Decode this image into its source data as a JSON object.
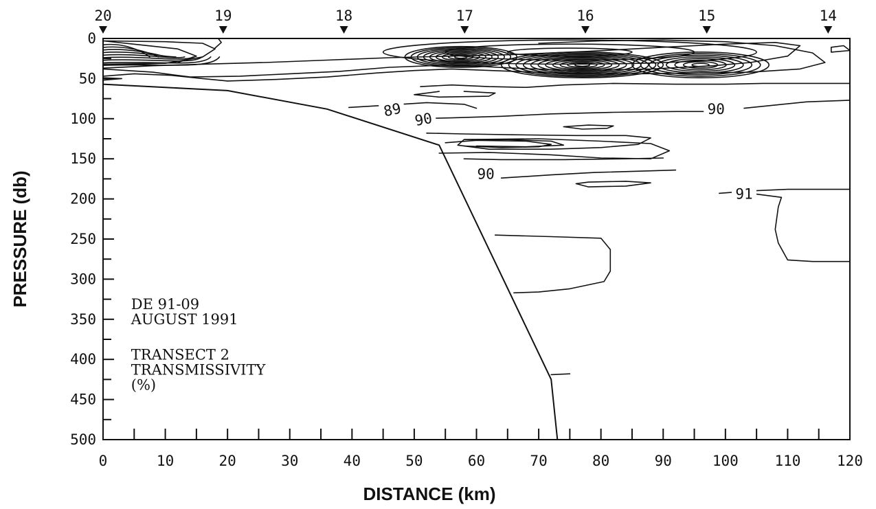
{
  "chart_data": {
    "type": "contour",
    "xlabel": "DISTANCE (km)",
    "ylabel": "PRESSURE (db)",
    "xlim": [
      0,
      120
    ],
    "ylim": [
      500,
      0
    ],
    "x_ticks": [
      0,
      10,
      20,
      30,
      40,
      50,
      60,
      70,
      80,
      90,
      100,
      110,
      120
    ],
    "y_ticks": [
      0,
      50,
      100,
      150,
      200,
      250,
      300,
      350,
      400,
      450,
      500
    ],
    "grid": false,
    "stations": [
      {
        "label": "20",
        "distance": 0
      },
      {
        "label": "19",
        "distance": 19.3
      },
      {
        "label": "18",
        "distance": 38.7
      },
      {
        "label": "17",
        "distance": 58.1
      },
      {
        "label": "16",
        "distance": 77.5
      },
      {
        "label": "15",
        "distance": 97
      },
      {
        "label": "14",
        "distance": 116.5
      }
    ],
    "annotations": [
      "DE 91-09",
      "AUGUST 1991",
      "TRANSECT 2",
      "TRANSMISSIVITY",
      "(%)"
    ],
    "bottom_profile": [
      [
        0,
        57
      ],
      [
        20,
        65
      ],
      [
        36,
        88
      ],
      [
        54,
        133
      ],
      [
        72,
        425
      ],
      [
        73,
        500
      ]
    ],
    "contours": [
      {
        "level": 89,
        "points": [
          [
            39.5,
            86
          ],
          [
            46,
            83
          ],
          [
            52,
            80
          ],
          [
            58,
            82
          ],
          [
            60,
            87
          ]
        ]
      },
      {
        "level": 90,
        "points": [
          [
            50,
            100
          ],
          [
            56,
            99
          ],
          [
            64,
            97
          ],
          [
            72,
            94
          ],
          [
            82,
            92
          ],
          [
            92,
            91
          ],
          [
            99,
            91
          ]
        ]
      },
      {
        "level": 90,
        "points": [
          [
            103,
            87
          ],
          [
            108,
            83
          ],
          [
            113,
            79
          ],
          [
            120,
            77
          ]
        ]
      },
      {
        "level": 90,
        "points": [
          [
            64,
            174
          ],
          [
            72,
            170
          ],
          [
            79,
            167
          ],
          [
            88,
            165
          ],
          [
            92,
            164
          ]
        ]
      },
      {
        "level": 91,
        "points": [
          [
            99,
            193
          ],
          [
            104,
            190
          ],
          [
            110,
            188
          ],
          [
            120,
            188
          ]
        ]
      },
      {
        "level": 91,
        "points": [
          [
            104,
            193
          ],
          [
            109,
            198
          ],
          [
            108.5,
            210
          ],
          [
            108,
            238
          ],
          [
            108.5,
            255
          ],
          [
            110,
            276
          ],
          [
            114,
            278
          ],
          [
            120,
            278
          ]
        ]
      },
      {
        "level": null,
        "points": [
          [
            63,
            245
          ],
          [
            72,
            247
          ],
          [
            80,
            249
          ],
          [
            81.5,
            263
          ],
          [
            81.5,
            290
          ],
          [
            80.5,
            303
          ],
          [
            75,
            312
          ],
          [
            70,
            316
          ],
          [
            66,
            317
          ]
        ]
      },
      {
        "level": null,
        "points": [
          [
            72,
            419
          ],
          [
            75,
            418
          ]
        ]
      }
    ],
    "contour_labels": [
      {
        "text": "89",
        "x": 46.5,
        "y": 95,
        "angle": -12
      },
      {
        "text": "90",
        "x": 51.5,
        "y": 107,
        "angle": -10
      },
      {
        "text": "90",
        "x": 98.5,
        "y": 94,
        "angle": 0
      },
      {
        "text": "90",
        "x": 61.5,
        "y": 175,
        "angle": 0
      },
      {
        "text": "91",
        "x": 103,
        "y": 200,
        "angle": 0
      }
    ]
  }
}
